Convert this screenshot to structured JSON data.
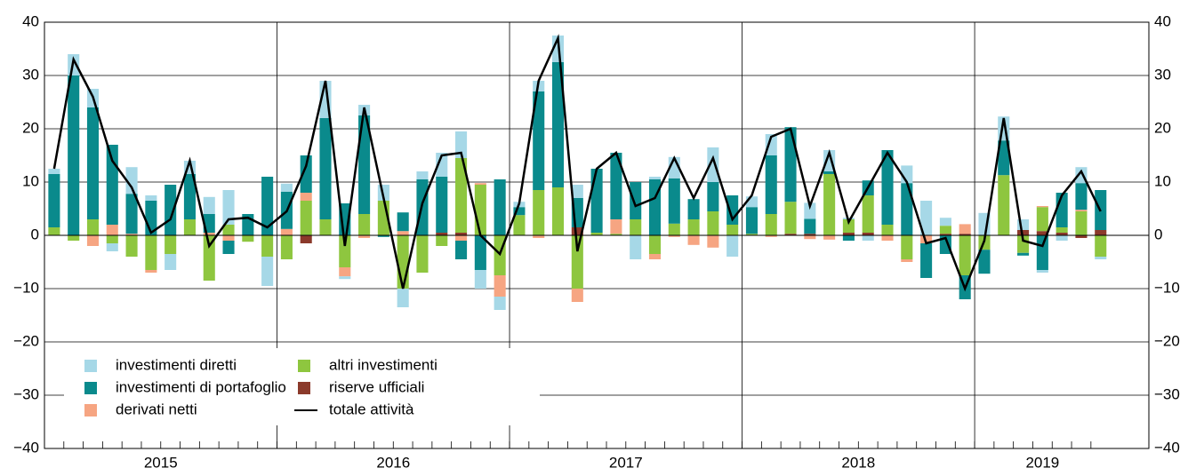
{
  "chart_data": {
    "type": "bar",
    "stacked": true,
    "categories": [
      null,
      null,
      null,
      null,
      null,
      null,
      null,
      null,
      null,
      null,
      null,
      null,
      null,
      null,
      null,
      null,
      null,
      null,
      null,
      null,
      null,
      null,
      null,
      null,
      null,
      null,
      null,
      null,
      null,
      null,
      null,
      null,
      null,
      null,
      null,
      null,
      null,
      null,
      null,
      null,
      null,
      null,
      null,
      null,
      null,
      null,
      null,
      null,
      null,
      null,
      null,
      null,
      null,
      null,
      null
    ],
    "years": [
      "2015",
      "2016",
      "2017",
      "2018",
      "2019"
    ],
    "ylim": [
      -40,
      40
    ],
    "yticks": [
      {
        "value": -40,
        "label": "−40"
      },
      {
        "value": -30,
        "label": "−30"
      },
      {
        "value": -20,
        "label": "−20"
      },
      {
        "value": -10,
        "label": "−10"
      },
      0,
      10,
      20,
      30,
      40
    ],
    "grid": true,
    "legend": "bottom-left",
    "series": [
      {
        "name": "investimenti diretti",
        "color": "#a6d8e7",
        "kind": "bar",
        "values": [
          1,
          4,
          3.5,
          -1.5,
          5,
          1,
          -3,
          2.5,
          3.2,
          6.5,
          0,
          -5.5,
          1.5,
          0,
          7,
          -0.5,
          2,
          3,
          -3.5,
          1.5,
          4.5,
          5,
          -3.5,
          -2.5,
          1,
          2,
          5,
          2.5,
          0,
          0,
          -4.5,
          0.5,
          4,
          0,
          6.5,
          -4,
          2,
          4,
          0,
          3,
          4,
          0.3,
          -1,
          0,
          3.3,
          6.5,
          1.5,
          0,
          4.2,
          4.5,
          2,
          -0.5,
          -1,
          3,
          -0.5
        ]
      },
      {
        "name": "investimenti di portafoglio",
        "color": "#0a8a8c",
        "kind": "bar",
        "values": [
          10,
          30,
          21,
          15,
          7.5,
          6.5,
          9.5,
          8.5,
          3.5,
          -2.5,
          4,
          11,
          7,
          7,
          19,
          6,
          18.5,
          -0.3,
          3.5,
          10.5,
          10.5,
          -3.5,
          -6.5,
          10.5,
          1.5,
          18.5,
          23.5,
          5.5,
          12,
          12.5,
          7,
          10.5,
          8.5,
          3.8,
          5.5,
          5.5,
          5,
          11,
          14,
          2.8,
          0.5,
          -1,
          2.8,
          14,
          9.8,
          -6.5,
          -3.5,
          -4.5,
          -4.5,
          6.5,
          -0.5,
          -6.5,
          6.5,
          5,
          7.5
        ]
      },
      {
        "name": "derivati netti",
        "color": "#f6a582",
        "kind": "bar",
        "values": [
          0,
          0,
          -2,
          2,
          0.3,
          -0.5,
          0,
          0,
          0.5,
          -1,
          0,
          0,
          1.2,
          1.5,
          0,
          -1.7,
          -0.5,
          0,
          0.8,
          0,
          0,
          -1,
          0.3,
          -4,
          0,
          -0.5,
          0,
          -2.5,
          0,
          2.7,
          0,
          -1,
          -0.3,
          -1.8,
          -2.3,
          0,
          0,
          -0.3,
          0,
          -0.7,
          -0.8,
          0,
          0,
          -1,
          -0.5,
          -1.5,
          0,
          1.8,
          0,
          0,
          0,
          0.2,
          0,
          0.3,
          0
        ]
      },
      {
        "name": "altri investimenti",
        "color": "#8ec63f",
        "kind": "bar",
        "values": [
          1.5,
          -1,
          3,
          -1.5,
          -4,
          -6.5,
          -3.5,
          3,
          -8.5,
          2,
          -1.2,
          -4,
          -4.5,
          6.5,
          3,
          -6,
          4,
          6.5,
          -10,
          -7,
          -2,
          14,
          9.5,
          -7.5,
          3.8,
          8.5,
          9,
          -10,
          0.5,
          0.3,
          3,
          -3.5,
          2.2,
          3,
          4.5,
          2,
          0.3,
          4,
          6,
          0,
          11.5,
          2.5,
          7,
          2,
          -4.5,
          0,
          1.5,
          -7.5,
          -2.7,
          11.3,
          -3.3,
          4.5,
          1,
          4.5,
          -4
        ]
      },
      {
        "name": "riserve ufficiali",
        "color": "#8b3a2b",
        "kind": "bar",
        "values": [
          0,
          0,
          0,
          0,
          0,
          0,
          0,
          0,
          0,
          0,
          0,
          0,
          0,
          -1.5,
          0,
          0,
          0,
          0,
          0,
          0,
          0.5,
          0.5,
          0,
          0,
          0,
          0,
          0,
          1.5,
          0,
          0,
          0,
          0,
          0,
          0,
          0,
          0,
          0,
          0,
          0.3,
          0.3,
          0,
          0.5,
          0.5,
          0,
          0,
          0,
          0.3,
          0.3,
          0,
          0,
          1,
          0.8,
          0.5,
          -0.5,
          1
        ]
      },
      {
        "name": "totale attività",
        "color": "#000000",
        "kind": "line",
        "values": [
          12.5,
          33,
          26,
          14,
          9,
          0.5,
          3,
          14,
          -2,
          3,
          3.3,
          1.5,
          4.5,
          13,
          29,
          -2,
          24,
          7,
          -10,
          6,
          15,
          15.5,
          0,
          -3.5,
          6,
          29,
          37,
          -3,
          12.5,
          15.5,
          5.5,
          7,
          14.5,
          7,
          14.5,
          3,
          7.5,
          18.5,
          20,
          5.5,
          15.5,
          2.5,
          9,
          15.5,
          10,
          -1.5,
          -0.5,
          -10,
          -1,
          22,
          -1,
          -2,
          7.5,
          12,
          4.5
        ]
      }
    ]
  }
}
